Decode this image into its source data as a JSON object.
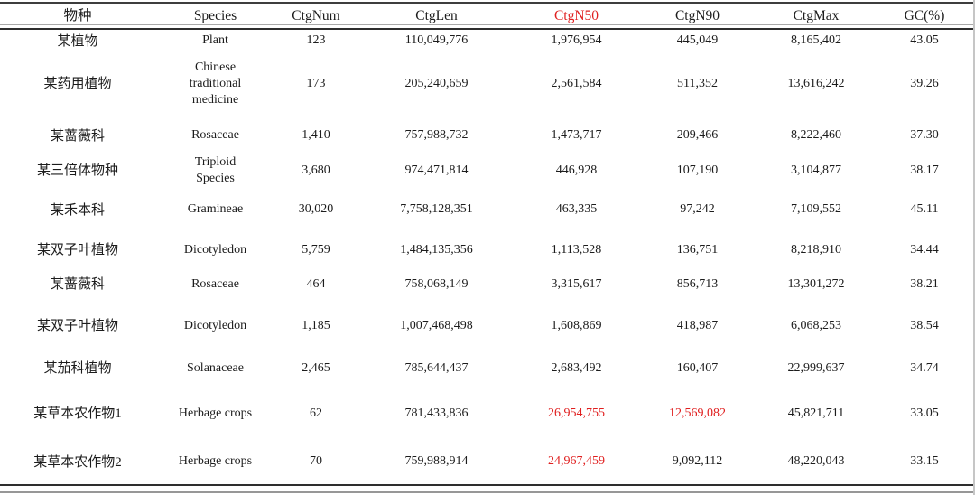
{
  "colors": {
    "accent_red": "#e01f1f",
    "text": "#1c1c1c"
  },
  "table": {
    "headers": [
      {
        "label": "物种",
        "red": false
      },
      {
        "label": "Species",
        "red": false
      },
      {
        "label": "CtgNum",
        "red": false
      },
      {
        "label": "CtgLen",
        "red": false
      },
      {
        "label": "CtgN50",
        "red": true
      },
      {
        "label": "CtgN90",
        "red": false
      },
      {
        "label": "CtgMax",
        "red": false
      },
      {
        "label": "GC(%)",
        "red": false
      }
    ],
    "rows": [
      {
        "cells": [
          "某植物",
          "Plant",
          "123",
          "110,049,776",
          "1,976,954",
          "445,049",
          "8,165,402",
          "43.05"
        ],
        "red_cells": []
      },
      {
        "cells": [
          "某药用植物",
          "Chinese traditional medicine",
          "173",
          "205,240,659",
          "2,561,584",
          "511,352",
          "13,616,242",
          "39.26"
        ],
        "red_cells": []
      },
      {
        "cells": [
          "某蔷薇科",
          "Rosaceae",
          "1,410",
          "757,988,732",
          "1,473,717",
          "209,466",
          "8,222,460",
          "37.30"
        ],
        "red_cells": []
      },
      {
        "cells": [
          "某三倍体物种",
          "Triploid Species",
          "3,680",
          "974,471,814",
          "446,928",
          "107,190",
          "3,104,877",
          "38.17"
        ],
        "red_cells": []
      },
      {
        "cells": [
          "某禾本科",
          "Gramineae",
          "30,020",
          "7,758,128,351",
          "463,335",
          "97,242",
          "7,109,552",
          "45.11"
        ],
        "red_cells": []
      },
      {
        "cells": [
          "某双子叶植物",
          "Dicotyledon",
          "5,759",
          "1,484,135,356",
          "1,113,528",
          "136,751",
          "8,218,910",
          "34.44"
        ],
        "red_cells": []
      },
      {
        "cells": [
          "某蔷薇科",
          "Rosaceae",
          "464",
          "758,068,149",
          "3,315,617",
          "856,713",
          "13,301,272",
          "38.21"
        ],
        "red_cells": []
      },
      {
        "cells": [
          "某双子叶植物",
          "Dicotyledon",
          "1,185",
          "1,007,468,498",
          "1,608,869",
          "418,987",
          "6,068,253",
          "38.54"
        ],
        "red_cells": []
      },
      {
        "cells": [
          "某茄科植物",
          "Solanaceae",
          "2,465",
          "785,644,437",
          "2,683,492",
          "160,407",
          "22,999,637",
          "34.74"
        ],
        "red_cells": []
      },
      {
        "cells": [
          "某草本农作物1",
          "Herbage crops",
          "62",
          "781,433,836",
          "26,954,755",
          "12,569,082",
          "45,821,711",
          "33.05"
        ],
        "red_cells": [
          4,
          5
        ]
      },
      {
        "cells": [
          "某草本农作物2",
          "Herbage crops",
          "70",
          "759,988,914",
          "24,967,459",
          "9,092,112",
          "48,220,043",
          "33.15"
        ],
        "red_cells": [
          4
        ]
      }
    ]
  }
}
